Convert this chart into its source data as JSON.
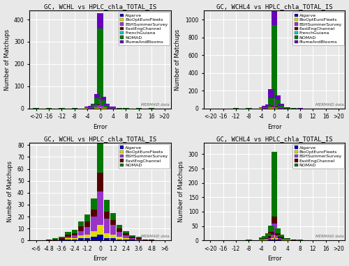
{
  "plots": [
    {
      "title": "GC, WCHL vs HPLC_chla_TOTAL_IS",
      "xlabel": "Error",
      "ylabel": "Number of Matchups",
      "xtick_labels": [
        "<-20",
        "-16",
        "-12",
        "-8",
        "-4",
        "0",
        "4",
        "8",
        "12",
        "16",
        ">20"
      ],
      "xtick_pos": [
        -20,
        -16,
        -12,
        -8,
        -4,
        0,
        4,
        8,
        12,
        16,
        20
      ],
      "xlim": [
        -22,
        22
      ],
      "ylim": [
        0,
        440
      ],
      "yticks": [
        0,
        100,
        200,
        300,
        400
      ],
      "bin_centers": [
        -20,
        -18,
        -16,
        -14,
        -12,
        -10,
        -8,
        -6,
        -4,
        -3,
        -2,
        -1,
        0,
        1,
        2,
        3,
        4,
        6,
        8,
        10,
        12,
        14,
        16,
        18,
        20
      ],
      "bin_width": 2,
      "series": {
        "Algarve": [
          0,
          0,
          0,
          0,
          0,
          0,
          0,
          0,
          0,
          0,
          1,
          0,
          1,
          0,
          0,
          0,
          0,
          0,
          0,
          0,
          0,
          0,
          0,
          0,
          0
        ],
        "BioOptEuroFleets": [
          0,
          0,
          0,
          0,
          0,
          0,
          0,
          0,
          1,
          0,
          2,
          3,
          4,
          2,
          1,
          0,
          0,
          0,
          0,
          0,
          0,
          0,
          0,
          0,
          0
        ],
        "BSHSummerSurvey": [
          0,
          0,
          0,
          0,
          0,
          0,
          0,
          0,
          1,
          2,
          5,
          12,
          38,
          8,
          3,
          1,
          1,
          0,
          0,
          0,
          0,
          0,
          0,
          0,
          0
        ],
        "EastEngChannel": [
          0,
          0,
          0,
          0,
          0,
          0,
          0,
          0,
          0,
          0,
          1,
          2,
          3,
          1,
          0,
          0,
          0,
          0,
          0,
          0,
          0,
          0,
          0,
          0,
          0
        ],
        "FrenchGuiana": [
          0,
          0,
          0,
          0,
          0,
          0,
          0,
          0,
          0,
          0,
          0,
          1,
          2,
          1,
          0,
          0,
          0,
          0,
          0,
          0,
          0,
          0,
          0,
          0,
          0
        ],
        "NOMAD": [
          1,
          0,
          1,
          0,
          1,
          0,
          2,
          0,
          3,
          5,
          8,
          28,
          310,
          25,
          10,
          4,
          4,
          2,
          1,
          0,
          1,
          0,
          1,
          0,
          0
        ],
        "PlumeAndBlooms": [
          0,
          0,
          0,
          0,
          0,
          0,
          1,
          0,
          3,
          4,
          5,
          18,
          70,
          15,
          7,
          2,
          2,
          1,
          1,
          0,
          0,
          0,
          0,
          0,
          0
        ]
      },
      "legend": [
        "Algarve",
        "BioOptEuroFleets",
        "BSHSummerSurvey",
        "EastEngChannel",
        "FrenchGuiana",
        "NOMAD",
        "PlumeAndBlooms"
      ]
    },
    {
      "title": "GC, WCHL4 vs HPLC_chla_TOTAL_IS",
      "xlabel": "Error",
      "ylabel": "Number of Matchups",
      "xtick_labels": [
        "<-20",
        "-16",
        "-12",
        "-8",
        "-4",
        "0",
        "4",
        "8",
        "12",
        "16",
        ">20"
      ],
      "xtick_pos": [
        -20,
        -16,
        -12,
        -8,
        -4,
        0,
        4,
        8,
        12,
        16,
        20
      ],
      "xlim": [
        -22,
        22
      ],
      "ylim": [
        0,
        1100
      ],
      "yticks": [
        0,
        200,
        400,
        600,
        800,
        1000
      ],
      "bin_centers": [
        -20,
        -18,
        -16,
        -14,
        -12,
        -10,
        -8,
        -6,
        -4,
        -3,
        -2,
        -1,
        0,
        1,
        2,
        3,
        4,
        6,
        8,
        10,
        12,
        14,
        16,
        18,
        20
      ],
      "bin_width": 2,
      "series": {
        "Algarve": [
          0,
          0,
          0,
          0,
          0,
          0,
          0,
          0,
          1,
          0,
          1,
          1,
          2,
          1,
          0,
          0,
          0,
          0,
          0,
          0,
          0,
          0,
          0,
          0,
          0
        ],
        "BioOptEuroFleets": [
          0,
          0,
          0,
          0,
          0,
          0,
          0,
          0,
          1,
          1,
          3,
          4,
          6,
          3,
          1,
          0,
          0,
          0,
          0,
          0,
          0,
          0,
          0,
          0,
          0
        ],
        "BSHSummerSurvey": [
          0,
          0,
          0,
          0,
          0,
          0,
          0,
          0,
          2,
          3,
          8,
          18,
          90,
          12,
          5,
          2,
          1,
          0,
          0,
          0,
          0,
          0,
          0,
          0,
          0
        ],
        "EastEngChannel": [
          0,
          0,
          0,
          0,
          0,
          0,
          0,
          0,
          0,
          1,
          2,
          3,
          5,
          2,
          1,
          0,
          0,
          0,
          0,
          0,
          0,
          0,
          0,
          0,
          0
        ],
        "FrenchGuiana": [
          0,
          0,
          0,
          0,
          0,
          0,
          0,
          0,
          0,
          0,
          0,
          1,
          3,
          1,
          0,
          0,
          0,
          0,
          0,
          0,
          0,
          0,
          0,
          0,
          0
        ],
        "NOMAD": [
          1,
          0,
          1,
          0,
          2,
          0,
          3,
          0,
          6,
          10,
          18,
          90,
          830,
          80,
          25,
          8,
          6,
          2,
          1,
          0,
          1,
          0,
          1,
          0,
          0
        ],
        "PlumeAndBlooms": [
          0,
          0,
          0,
          0,
          0,
          0,
          2,
          0,
          5,
          10,
          15,
          100,
          220,
          50,
          18,
          5,
          5,
          2,
          1,
          0,
          0,
          0,
          0,
          0,
          0
        ]
      },
      "legend": [
        "Algarve",
        "BioOptEuroFleets",
        "BSHSummerSurvey",
        "EastEngChannel",
        "FrenchGuiana",
        "NOMAD",
        "PlumeAndBlooms"
      ]
    },
    {
      "title": "GC, WCHL vs HPLC_chla_TOTAL_IS",
      "xlabel": "Error",
      "ylabel": "Number of Matchups",
      "xtick_labels": [
        "<-6",
        "-4.8",
        "-3.6",
        "-2.4",
        "-1.2",
        "0",
        "1.2",
        "2.4",
        "3.6",
        "4.8",
        ">6"
      ],
      "xtick_pos": [
        -6,
        -4.8,
        -3.6,
        -2.4,
        -1.2,
        0,
        1.2,
        2.4,
        3.6,
        4.8,
        6
      ],
      "xlim": [
        -6.6,
        6.6
      ],
      "ylim": [
        0,
        82
      ],
      "yticks": [
        0,
        10,
        20,
        30,
        40,
        50,
        60,
        70,
        80
      ],
      "bin_centers": [
        -6.0,
        -5.4,
        -4.8,
        -4.2,
        -3.6,
        -3.0,
        -2.4,
        -1.8,
        -1.2,
        -0.6,
        0.0,
        0.6,
        1.2,
        1.8,
        2.4,
        3.0,
        3.6,
        4.2,
        4.8,
        5.4,
        6.0
      ],
      "bin_width": 0.6,
      "series": {
        "Algarve": [
          0,
          0,
          0,
          0,
          1,
          1,
          1,
          2,
          2,
          3,
          5,
          2,
          2,
          1,
          1,
          1,
          0,
          0,
          0,
          0,
          0
        ],
        "BioOptEuroFleets": [
          0,
          0,
          0,
          0,
          0,
          1,
          1,
          2,
          3,
          5,
          8,
          4,
          3,
          2,
          1,
          0,
          0,
          0,
          0,
          0,
          0
        ],
        "BSHSummerSurvey": [
          0,
          0,
          0,
          0,
          0,
          1,
          2,
          4,
          6,
          12,
          28,
          12,
          8,
          4,
          2,
          1,
          1,
          0,
          0,
          0,
          0
        ],
        "EastEngChannel": [
          0,
          0,
          1,
          1,
          1,
          2,
          2,
          4,
          5,
          6,
          16,
          6,
          4,
          3,
          2,
          1,
          1,
          1,
          1,
          0,
          0
        ],
        "NOMAD": [
          0,
          0,
          0,
          1,
          1,
          2,
          3,
          4,
          6,
          9,
          28,
          10,
          6,
          3,
          2,
          1,
          1,
          0,
          0,
          0,
          0
        ]
      },
      "legend": [
        "Algarve",
        "BioOptEuroFleets",
        "BSHSummerSurvey",
        "EastEngChannel",
        "NOMAD"
      ]
    },
    {
      "title": "GC, WCHL4 vs HPLC_chla_TOTAL_IS",
      "xlabel": "Error",
      "ylabel": "Number of Matchups",
      "xtick_labels": [
        "<-20",
        "-16",
        "-12",
        "-8",
        "-4",
        "0",
        "4",
        "8",
        "12",
        "16",
        ">20"
      ],
      "xtick_pos": [
        -20,
        -16,
        -12,
        -8,
        -4,
        0,
        4,
        8,
        12,
        16,
        20
      ],
      "xlim": [
        -22,
        22
      ],
      "ylim": [
        0,
        340
      ],
      "yticks": [
        0,
        50,
        100,
        150,
        200,
        250,
        300
      ],
      "bin_centers": [
        -20,
        -18,
        -16,
        -14,
        -12,
        -10,
        -8,
        -6,
        -4,
        -3,
        -2,
        -1,
        0,
        1,
        2,
        3,
        4,
        6,
        8,
        10,
        12,
        14,
        16,
        18,
        20
      ],
      "bin_width": 2,
      "series": {
        "Algarve": [
          0,
          0,
          0,
          0,
          0,
          0,
          1,
          0,
          1,
          1,
          2,
          3,
          8,
          3,
          2,
          1,
          1,
          0,
          0,
          0,
          0,
          0,
          0,
          0,
          0
        ],
        "BioOptEuroFleets": [
          0,
          0,
          0,
          0,
          0,
          0,
          0,
          0,
          1,
          1,
          2,
          4,
          10,
          4,
          2,
          1,
          1,
          0,
          0,
          0,
          0,
          0,
          0,
          0,
          0
        ],
        "BSHSummerSurvey": [
          0,
          0,
          0,
          0,
          0,
          0,
          0,
          0,
          2,
          3,
          5,
          12,
          40,
          10,
          5,
          2,
          2,
          1,
          0,
          0,
          0,
          0,
          0,
          0,
          0
        ],
        "EastEngChannel": [
          0,
          0,
          0,
          0,
          0,
          0,
          0,
          0,
          2,
          3,
          5,
          10,
          25,
          8,
          4,
          2,
          2,
          1,
          1,
          0,
          0,
          0,
          0,
          0,
          0
        ],
        "NOMAD": [
          1,
          0,
          1,
          0,
          1,
          0,
          1,
          0,
          4,
          6,
          10,
          22,
          225,
          18,
          7,
          3,
          3,
          2,
          1,
          0,
          0,
          0,
          0,
          0,
          0
        ]
      },
      "legend": [
        "Algarve",
        "BioOptEuroFleets",
        "BSHSummerSurvey",
        "EastEngChannel",
        "NOMAD"
      ]
    }
  ],
  "colors": {
    "Algarve": "#0000bb",
    "BioOptEuroFleets": "#dddd00",
    "BSHSummerSurvey": "#9933cc",
    "EastEngChannel": "#550000",
    "FrenchGuiana": "#00cccc",
    "NOMAD": "#007700",
    "PlumeAndBlooms": "#6600bb"
  },
  "background_color": "#e8e8e8",
  "grid_color": "#ffffff",
  "title_fontsize": 6.5,
  "label_fontsize": 6,
  "tick_fontsize": 5.5,
  "legend_fontsize": 4.5,
  "watermark": "MERMAID data"
}
